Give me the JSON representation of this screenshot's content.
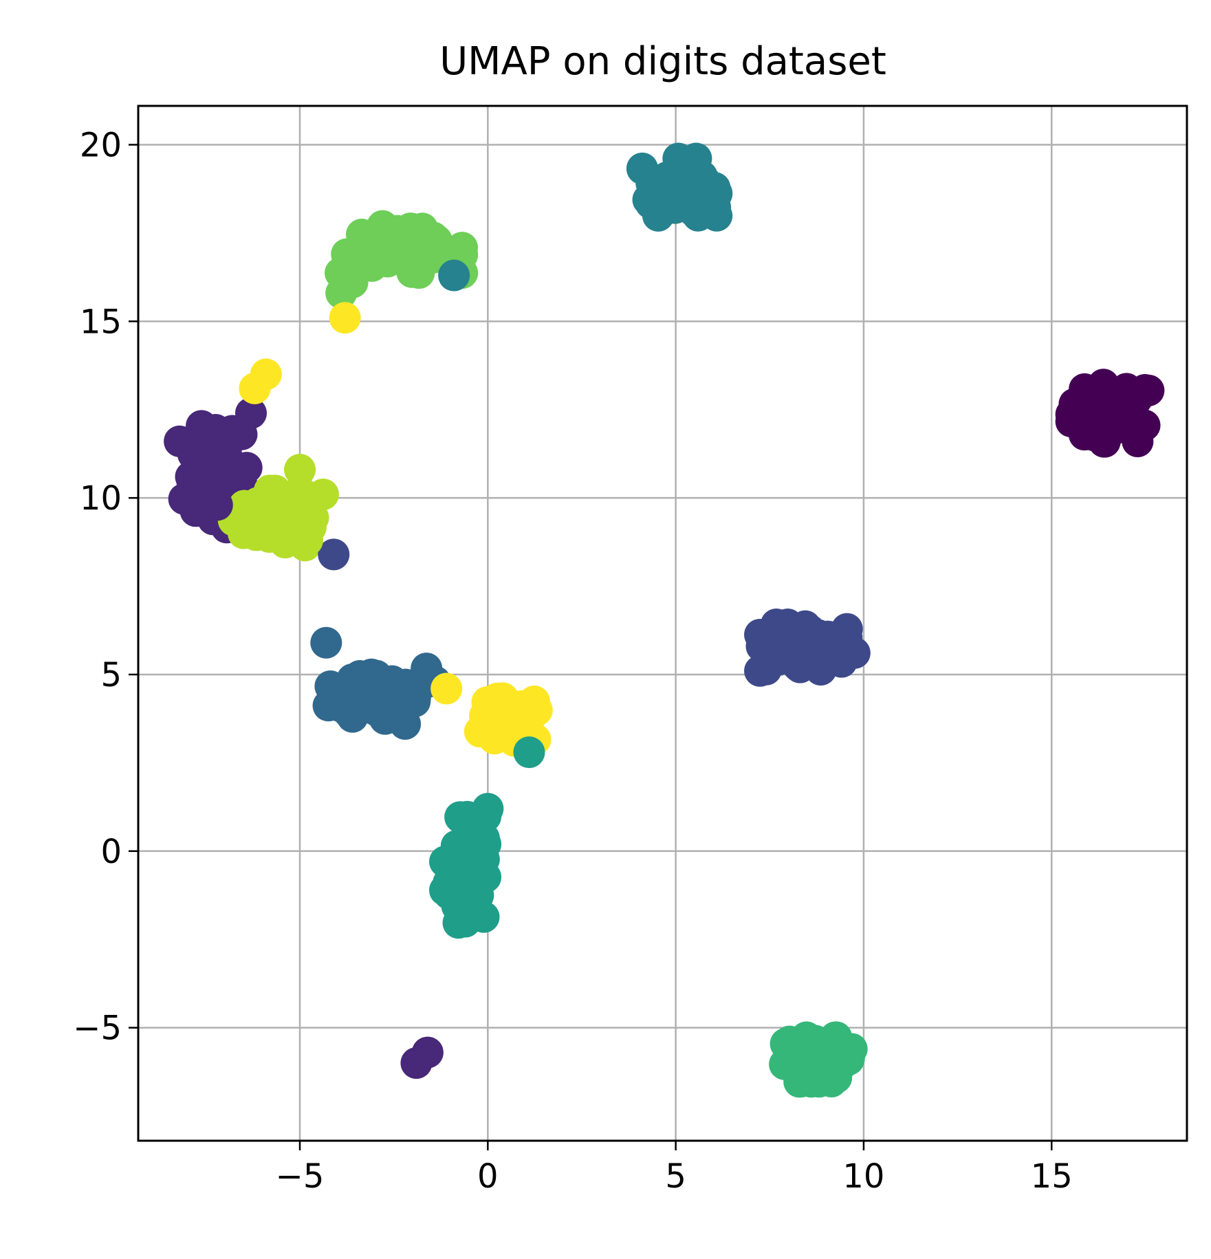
{
  "chart_data": {
    "type": "scatter",
    "title": "UMAP on digits dataset",
    "xlabel": "",
    "ylabel": "",
    "xlim": [
      -9.3,
      18.6
    ],
    "ylim": [
      -8.2,
      21.1
    ],
    "xticks": [
      -5,
      0,
      5,
      10,
      15
    ],
    "yticks": [
      -5,
      0,
      5,
      10,
      15,
      20
    ],
    "xtick_labels": [
      "−5",
      "0",
      "5",
      "10",
      "15"
    ],
    "ytick_labels": [
      "−5",
      "0",
      "5",
      "10",
      "15",
      "20"
    ],
    "grid": true,
    "colormap": "viridis",
    "cluster_colors": {
      "0": "#440154",
      "1": "#482878",
      "2": "#3e4989",
      "3": "#31688e",
      "4": "#26828e",
      "5": "#1f9e89",
      "6": "#35b779",
      "7": "#6ece58",
      "8": "#b5de2b",
      "9": "#fde725"
    },
    "clusters": [
      {
        "label": 0,
        "center": [
          16.6,
          12.4
        ],
        "spread": [
          0.6,
          0.45
        ],
        "count": 45
      },
      {
        "label": 1,
        "center": [
          -7.3,
          10.6
        ],
        "spread": [
          0.5,
          0.8
        ],
        "count": 40
      },
      {
        "label": 2,
        "center": [
          8.5,
          5.7
        ],
        "spread": [
          0.7,
          0.4
        ],
        "count": 45
      },
      {
        "label": 3,
        "center": [
          -2.8,
          4.5
        ],
        "spread": [
          0.8,
          0.45
        ],
        "count": 40
      },
      {
        "label": 4,
        "center": [
          5.1,
          18.8
        ],
        "spread": [
          0.55,
          0.45
        ],
        "count": 45
      },
      {
        "label": 5,
        "center": [
          -0.6,
          -0.5
        ],
        "spread": [
          0.3,
          0.85
        ],
        "count": 40
      },
      {
        "label": 6,
        "center": [
          8.8,
          -5.9
        ],
        "spread": [
          0.5,
          0.35
        ],
        "count": 45
      },
      {
        "label": 7,
        "center": [
          -2.3,
          17.0
        ],
        "spread": [
          0.9,
          0.35
        ],
        "count": 40
      },
      {
        "label": 8,
        "center": [
          -5.5,
          9.4
        ],
        "spread": [
          0.7,
          0.45
        ],
        "count": 45
      },
      {
        "label": 9,
        "center": [
          0.6,
          3.7
        ],
        "spread": [
          0.45,
          0.35
        ],
        "count": 40
      }
    ],
    "points": [
      {
        "x": -6.3,
        "y": 12.4,
        "label": 1
      },
      {
        "x": -6.8,
        "y": 11.9,
        "label": 1
      },
      {
        "x": -7.9,
        "y": 10.6,
        "label": 1
      },
      {
        "x": -7.2,
        "y": 9.8,
        "label": 1
      },
      {
        "x": -1.9,
        "y": -6.0,
        "label": 1
      },
      {
        "x": -1.6,
        "y": -5.7,
        "label": 1
      },
      {
        "x": -4.1,
        "y": 8.4,
        "label": 2
      },
      {
        "x": -4.3,
        "y": 5.9,
        "label": 3
      },
      {
        "x": -1.4,
        "y": 4.8,
        "label": 3
      },
      {
        "x": -3.6,
        "y": 3.8,
        "label": 3
      },
      {
        "x": -2.2,
        "y": 3.6,
        "label": 3
      },
      {
        "x": -0.9,
        "y": 16.3,
        "label": 4
      },
      {
        "x": 1.1,
        "y": 2.8,
        "label": 5
      },
      {
        "x": 0.0,
        "y": 1.2,
        "label": 5
      },
      {
        "x": -0.6,
        "y": -2.0,
        "label": 5
      },
      {
        "x": -3.6,
        "y": 16.1,
        "label": 7
      },
      {
        "x": -3.9,
        "y": 15.8,
        "label": 7
      },
      {
        "x": -2.8,
        "y": 17.7,
        "label": 7
      },
      {
        "x": -5.0,
        "y": 10.8,
        "label": 8
      },
      {
        "x": -5.0,
        "y": 10.2,
        "label": 8
      },
      {
        "x": -4.8,
        "y": 8.8,
        "label": 8
      },
      {
        "x": -6.5,
        "y": 9.0,
        "label": 8
      },
      {
        "x": -3.8,
        "y": 15.1,
        "label": 9
      },
      {
        "x": -5.9,
        "y": 13.5,
        "label": 9
      },
      {
        "x": -6.2,
        "y": 13.1,
        "label": 9
      },
      {
        "x": -1.1,
        "y": 4.6,
        "label": 9
      }
    ]
  }
}
